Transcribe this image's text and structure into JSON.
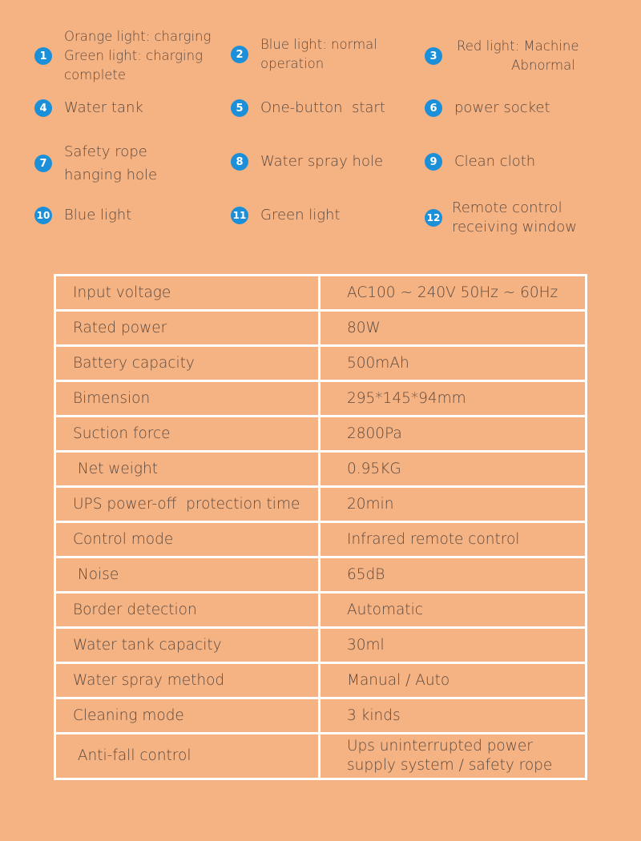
{
  "legend": [
    {
      "n": "1",
      "text": "Orange light: charging\nGreen light: charging\ncomplete"
    },
    {
      "n": "2",
      "text": "Blue light: normal\noperation"
    },
    {
      "n": "3",
      "text": "Red light: Machine\n             Abnormal"
    },
    {
      "n": "4",
      "text": "Water tank"
    },
    {
      "n": "5",
      "text": "One-button  start"
    },
    {
      "n": "6",
      "text": "power socket"
    },
    {
      "n": "7",
      "text": "Safety rope\nhanging hole"
    },
    {
      "n": "8",
      "text": "Water spray hole"
    },
    {
      "n": "9",
      "text": "Clean cloth"
    },
    {
      "n": "10",
      "text": "Blue light"
    },
    {
      "n": "11",
      "text": "Green light"
    },
    {
      "n": "12",
      "text": "Remote control\nreceiving window"
    }
  ],
  "specs": [
    {
      "k": "Input voltage",
      "v": "AC100 ~ 240V 50Hz ~ 60Hz"
    },
    {
      "k": "Rated power",
      "v": "80W"
    },
    {
      "k": "Battery capacity",
      "v": "500mAh"
    },
    {
      "k": "Bimension",
      "v": "295*145*94mm"
    },
    {
      "k": "Suction force",
      "v": "2800Pa"
    },
    {
      "k": " Net weight",
      "v": "0.95KG"
    },
    {
      "k": "UPS power-off  protection time",
      "v": "20min"
    },
    {
      "k": "Control mode",
      "v": "Infrared remote control"
    },
    {
      "k": " Noise",
      "v": "65dB"
    },
    {
      "k": "Border detection",
      "v": " Automatic"
    },
    {
      "k": "Water tank capacity",
      "v": "30ml"
    },
    {
      "k": "Water spray method",
      "v": "Manual / Auto"
    },
    {
      "k": "Cleaning mode",
      "v": "3 kinds"
    },
    {
      "k": " Anti-fall control",
      "v": "Ups uninterrupted power\nsupply system / safety rope"
    }
  ],
  "colors": {
    "background": "#f5b283",
    "badge": "#1c8fd9",
    "border": "#ffffff",
    "text": "#5b4a3f"
  }
}
